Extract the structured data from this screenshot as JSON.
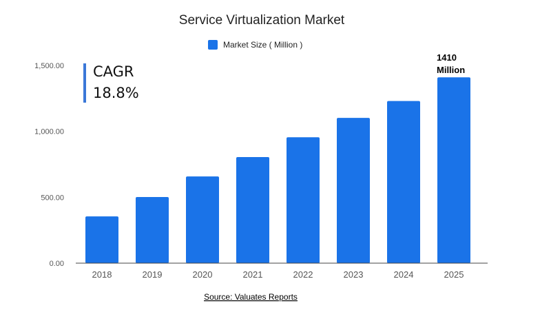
{
  "chart_data": {
    "type": "bar",
    "title": "Service Virtualization Market",
    "xlabel": "",
    "ylabel": "",
    "categories": [
      "2018",
      "2019",
      "2020",
      "2021",
      "2022",
      "2023",
      "2024",
      "2025"
    ],
    "series": [
      {
        "name": "Market Size ( Million )",
        "values": [
          355,
          502,
          658,
          805,
          955,
          1102,
          1230,
          1410
        ],
        "color": "#1a73e8"
      }
    ],
    "ylim": [
      0,
      1500
    ],
    "yticks": [
      "0.00",
      "500.00",
      "1,000.00",
      "1,500.00"
    ],
    "ytick_values": [
      0,
      500,
      1000,
      1500
    ],
    "grid": false,
    "legend_position": "top-center",
    "annotations": {
      "cagr_title": "CAGR",
      "cagr_value": "18.8%",
      "last_value_line1": "1410",
      "last_value_line2": "Million"
    },
    "source": "Source: Valuates Reports"
  },
  "colors": {
    "bar": "#1a73e8",
    "cagr_bar": "#3b78d8",
    "axis": "#444444"
  }
}
